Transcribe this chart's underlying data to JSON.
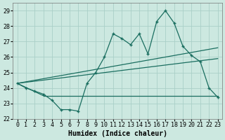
{
  "xlabel": "Humidex (Indice chaleur)",
  "bg_color": "#cce8e0",
  "line_color": "#1a6e60",
  "grid_color": "#aacfc8",
  "xlim": [
    -0.5,
    23.5
  ],
  "ylim": [
    22,
    29.5
  ],
  "yticks": [
    22,
    23,
    24,
    25,
    26,
    27,
    28,
    29
  ],
  "xticks": [
    0,
    1,
    2,
    3,
    4,
    5,
    6,
    7,
    8,
    9,
    10,
    11,
    12,
    13,
    14,
    15,
    16,
    17,
    18,
    19,
    20,
    21,
    22,
    23
  ],
  "main_line_x": [
    0,
    1,
    2,
    3,
    4,
    5,
    6,
    7,
    8,
    9,
    10,
    11,
    12,
    13,
    14,
    15,
    16,
    17,
    18,
    19,
    20,
    21,
    22,
    23
  ],
  "main_line_y": [
    24.3,
    24.0,
    23.8,
    23.6,
    23.2,
    22.6,
    22.6,
    22.5,
    24.3,
    25.0,
    26.0,
    27.5,
    27.2,
    26.8,
    27.5,
    26.2,
    28.3,
    29.0,
    28.2,
    26.7,
    26.1,
    25.7,
    24.0,
    23.4
  ],
  "upper_line_x": [
    0,
    23
  ],
  "upper_line_y": [
    24.3,
    26.6
  ],
  "lower_line_x": [
    0,
    23
  ],
  "lower_line_y": [
    24.3,
    25.9
  ],
  "flat_line_x": [
    3,
    23
  ],
  "flat_line_y": [
    23.5,
    23.5
  ],
  "diag_line_x": [
    0,
    3
  ],
  "diag_line_y": [
    24.3,
    23.5
  ],
  "axis_fontsize": 7,
  "tick_fontsize": 6
}
